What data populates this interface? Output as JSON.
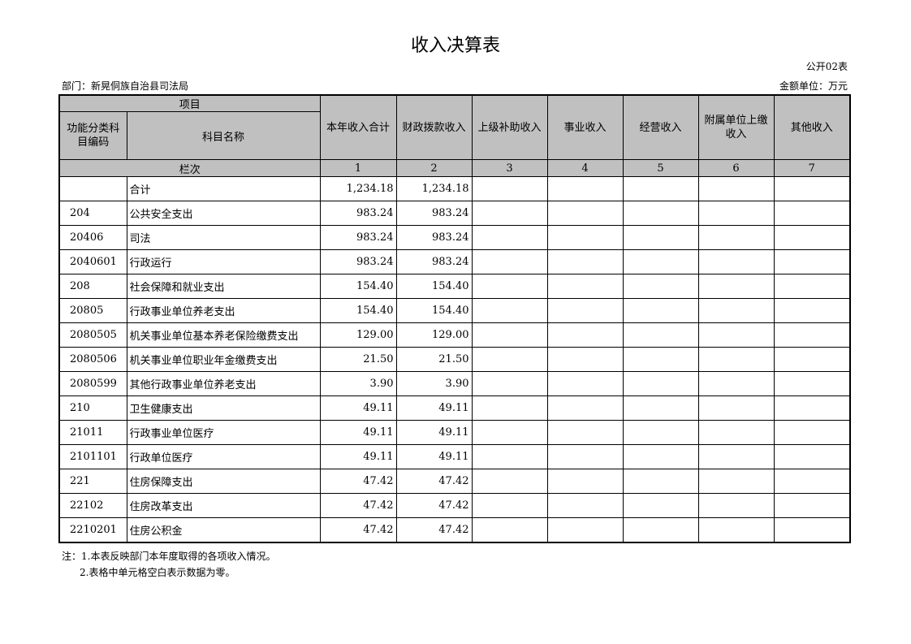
{
  "title": "收入决算表",
  "table_code": "公开02表",
  "department": "部门：新晃侗族自治县司法局",
  "unit": "金额单位：万元",
  "headers": {
    "project": "项目",
    "code": "功能分类科目编码",
    "name": "科目名称",
    "columns": [
      "本年收入合计",
      "财政拨款收入",
      "上级补助收入",
      "事业收入",
      "经营收入",
      "附属单位上缴收入",
      "其他收入"
    ],
    "row_index_label": "栏次",
    "column_numbers": [
      "1",
      "2",
      "3",
      "4",
      "5",
      "6",
      "7"
    ]
  },
  "rows": [
    {
      "code": "",
      "name": "合计",
      "total": "1,234.18",
      "fiscal": "1,234.18"
    },
    {
      "code": "204",
      "name": "公共安全支出",
      "total": "983.24",
      "fiscal": "983.24"
    },
    {
      "code": "20406",
      "name": "司法",
      "total": "983.24",
      "fiscal": "983.24"
    },
    {
      "code": "2040601",
      "name": "行政运行",
      "total": "983.24",
      "fiscal": "983.24"
    },
    {
      "code": "208",
      "name": "社会保障和就业支出",
      "total": "154.40",
      "fiscal": "154.40"
    },
    {
      "code": "20805",
      "name": "行政事业单位养老支出",
      "total": "154.40",
      "fiscal": "154.40"
    },
    {
      "code": "2080505",
      "name": "机关事业单位基本养老保险缴费支出",
      "total": "129.00",
      "fiscal": "129.00"
    },
    {
      "code": "2080506",
      "name": "机关事业单位职业年金缴费支出",
      "total": "21.50",
      "fiscal": "21.50"
    },
    {
      "code": "2080599",
      "name": "其他行政事业单位养老支出",
      "total": "3.90",
      "fiscal": "3.90"
    },
    {
      "code": "210",
      "name": "卫生健康支出",
      "total": "49.11",
      "fiscal": "49.11"
    },
    {
      "code": "21011",
      "name": "行政事业单位医疗",
      "total": "49.11",
      "fiscal": "49.11"
    },
    {
      "code": "2101101",
      "name": "行政单位医疗",
      "total": "49.11",
      "fiscal": "49.11"
    },
    {
      "code": "221",
      "name": "住房保障支出",
      "total": "47.42",
      "fiscal": "47.42"
    },
    {
      "code": "22102",
      "name": "住房改革支出",
      "total": "47.42",
      "fiscal": "47.42"
    },
    {
      "code": "2210201",
      "name": "住房公积金",
      "total": "47.42",
      "fiscal": "47.42"
    }
  ],
  "notes": [
    "注：1.本表反映部门本年度取得的各项收入情况。",
    "2.表格中单元格空白表示数据为零。"
  ]
}
